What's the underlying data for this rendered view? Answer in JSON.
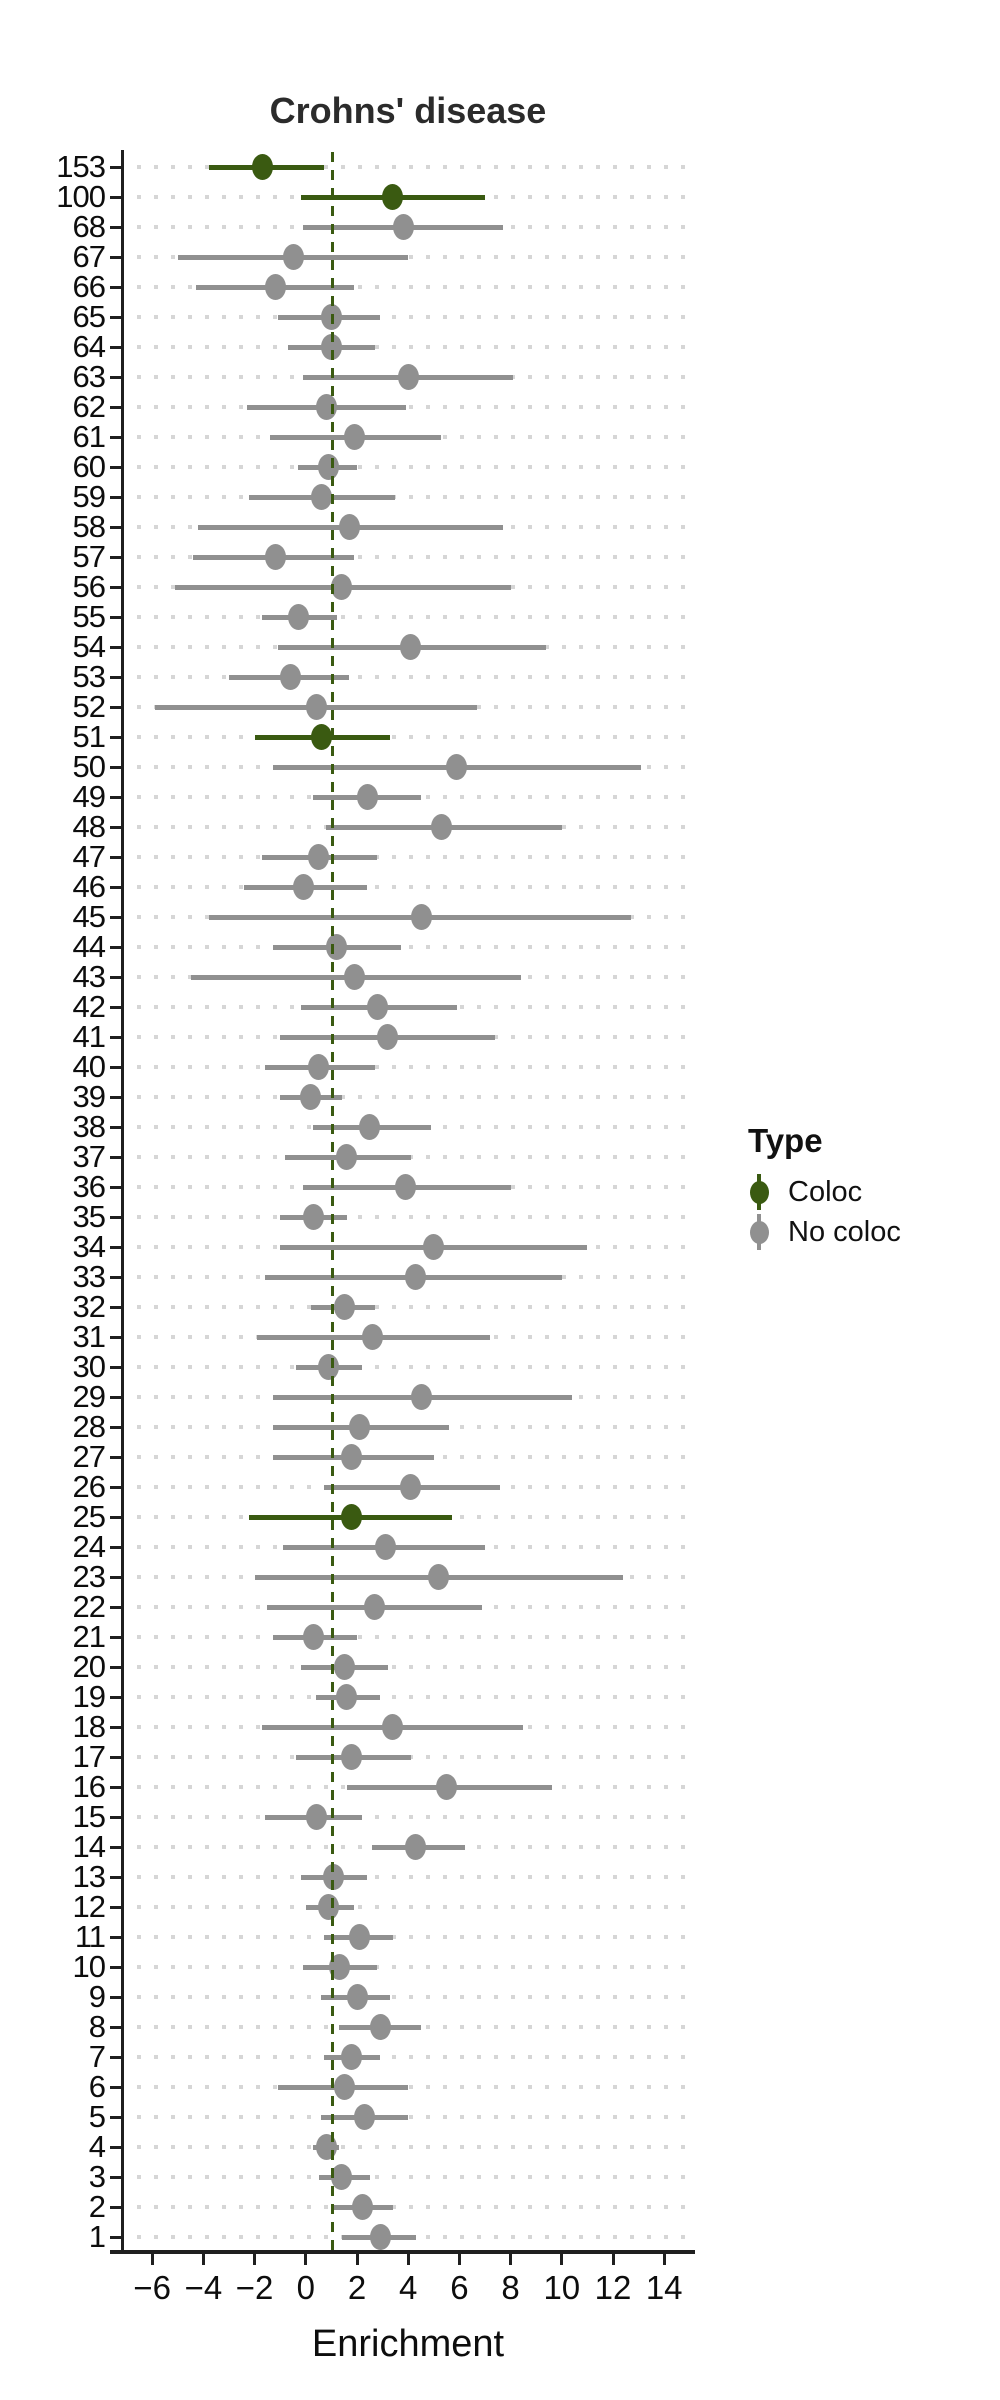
{
  "page": {
    "background": "#ffffff"
  },
  "chart_data": {
    "type": "scatter",
    "mark": "pointrange-forest-plot",
    "title": "Crohns' disease",
    "xlabel": "Enrichment",
    "ylabel": "",
    "x_ticks": [
      -6,
      -4,
      -2,
      0,
      2,
      4,
      6,
      8,
      10,
      12,
      14
    ],
    "x_tick_labels": [
      "−6",
      "−4",
      "−2",
      "0",
      "2",
      "4",
      "6",
      "8",
      "10",
      "12",
      "14"
    ],
    "xlim": [
      -7.1,
      15.1
    ],
    "grid": "dotted-horizontal-per-row",
    "vline": {
      "x": 1.05,
      "style": "dashed",
      "color": "#3a5a11"
    },
    "legend": {
      "title": "Type",
      "position": "right",
      "items": [
        {
          "label": "Coloc",
          "color": "#3a5a11"
        },
        {
          "label": "No coloc",
          "color": "#909090"
        }
      ]
    },
    "colors": {
      "coloc": "#3a5a11",
      "no_coloc": "#909090",
      "grid_dot": "#d6d6d6",
      "axis": "#1f1f1f",
      "text": "#0d0d0d",
      "title_text": "#2b2b2b"
    },
    "rows": [
      {
        "label": "153",
        "type": "Coloc",
        "mean": -1.7,
        "lo": -3.8,
        "hi": 0.7
      },
      {
        "label": "100",
        "type": "Coloc",
        "mean": 3.4,
        "lo": -0.2,
        "hi": 7.0
      },
      {
        "label": "68",
        "type": "No coloc",
        "mean": 3.8,
        "lo": -0.1,
        "hi": 7.7
      },
      {
        "label": "67",
        "type": "No coloc",
        "mean": -0.5,
        "lo": -5.0,
        "hi": 4.0
      },
      {
        "label": "66",
        "type": "No coloc",
        "mean": -1.2,
        "lo": -4.3,
        "hi": 1.9
      },
      {
        "label": "65",
        "type": "No coloc",
        "mean": 1.0,
        "lo": -1.1,
        "hi": 2.9
      },
      {
        "label": "64",
        "type": "No coloc",
        "mean": 1.0,
        "lo": -0.7,
        "hi": 2.7
      },
      {
        "label": "63",
        "type": "No coloc",
        "mean": 4.0,
        "lo": -0.1,
        "hi": 8.1
      },
      {
        "label": "62",
        "type": "No coloc",
        "mean": 0.8,
        "lo": -2.3,
        "hi": 3.9
      },
      {
        "label": "61",
        "type": "No coloc",
        "mean": 1.9,
        "lo": -1.4,
        "hi": 5.3
      },
      {
        "label": "60",
        "type": "No coloc",
        "mean": 0.9,
        "lo": -0.3,
        "hi": 2.0
      },
      {
        "label": "59",
        "type": "No coloc",
        "mean": 0.6,
        "lo": -2.2,
        "hi": 3.5
      },
      {
        "label": "58",
        "type": "No coloc",
        "mean": 1.7,
        "lo": -4.2,
        "hi": 7.7
      },
      {
        "label": "57",
        "type": "No coloc",
        "mean": -1.2,
        "lo": -4.4,
        "hi": 1.9
      },
      {
        "label": "56",
        "type": "No coloc",
        "mean": 1.4,
        "lo": -5.1,
        "hi": 8.0
      },
      {
        "label": "55",
        "type": "No coloc",
        "mean": -0.3,
        "lo": -1.7,
        "hi": 1.2
      },
      {
        "label": "54",
        "type": "No coloc",
        "mean": 4.1,
        "lo": -1.1,
        "hi": 9.4
      },
      {
        "label": "53",
        "type": "No coloc",
        "mean": -0.6,
        "lo": -3.0,
        "hi": 1.7
      },
      {
        "label": "52",
        "type": "No coloc",
        "mean": 0.4,
        "lo": -5.9,
        "hi": 6.7
      },
      {
        "label": "51",
        "type": "Coloc",
        "mean": 0.6,
        "lo": -2.0,
        "hi": 3.3
      },
      {
        "label": "50",
        "type": "No coloc",
        "mean": 5.9,
        "lo": -1.3,
        "hi": 13.1
      },
      {
        "label": "49",
        "type": "No coloc",
        "mean": 2.4,
        "lo": 0.3,
        "hi": 4.5
      },
      {
        "label": "48",
        "type": "No coloc",
        "mean": 5.3,
        "lo": 0.8,
        "hi": 10.0
      },
      {
        "label": "47",
        "type": "No coloc",
        "mean": 0.5,
        "lo": -1.7,
        "hi": 2.8
      },
      {
        "label": "46",
        "type": "No coloc",
        "mean": -0.1,
        "lo": -2.4,
        "hi": 2.4
      },
      {
        "label": "45",
        "type": "No coloc",
        "mean": 4.5,
        "lo": -3.8,
        "hi": 12.7
      },
      {
        "label": "44",
        "type": "No coloc",
        "mean": 1.2,
        "lo": -1.3,
        "hi": 3.7
      },
      {
        "label": "43",
        "type": "No coloc",
        "mean": 1.9,
        "lo": -4.5,
        "hi": 8.4
      },
      {
        "label": "42",
        "type": "No coloc",
        "mean": 2.8,
        "lo": -0.2,
        "hi": 5.9
      },
      {
        "label": "41",
        "type": "No coloc",
        "mean": 3.2,
        "lo": -1.0,
        "hi": 7.4
      },
      {
        "label": "40",
        "type": "No coloc",
        "mean": 0.5,
        "lo": -1.6,
        "hi": 2.7
      },
      {
        "label": "39",
        "type": "No coloc",
        "mean": 0.2,
        "lo": -1.0,
        "hi": 1.4
      },
      {
        "label": "38",
        "type": "No coloc",
        "mean": 2.5,
        "lo": 0.3,
        "hi": 4.9
      },
      {
        "label": "37",
        "type": "No coloc",
        "mean": 1.6,
        "lo": -0.8,
        "hi": 4.1
      },
      {
        "label": "36",
        "type": "No coloc",
        "mean": 3.9,
        "lo": -0.1,
        "hi": 8.0
      },
      {
        "label": "35",
        "type": "No coloc",
        "mean": 0.3,
        "lo": -1.0,
        "hi": 1.6
      },
      {
        "label": "34",
        "type": "No coloc",
        "mean": 5.0,
        "lo": -1.0,
        "hi": 11.0
      },
      {
        "label": "33",
        "type": "No coloc",
        "mean": 4.3,
        "lo": -1.6,
        "hi": 10.0
      },
      {
        "label": "32",
        "type": "No coloc",
        "mean": 1.5,
        "lo": 0.2,
        "hi": 2.7
      },
      {
        "label": "31",
        "type": "No coloc",
        "mean": 2.6,
        "lo": -1.9,
        "hi": 7.2
      },
      {
        "label": "30",
        "type": "No coloc",
        "mean": 0.9,
        "lo": -0.4,
        "hi": 2.2
      },
      {
        "label": "29",
        "type": "No coloc",
        "mean": 4.5,
        "lo": -1.3,
        "hi": 10.4
      },
      {
        "label": "28",
        "type": "No coloc",
        "mean": 2.1,
        "lo": -1.3,
        "hi": 5.6
      },
      {
        "label": "27",
        "type": "No coloc",
        "mean": 1.8,
        "lo": -1.3,
        "hi": 5.0
      },
      {
        "label": "26",
        "type": "No coloc",
        "mean": 4.1,
        "lo": 0.7,
        "hi": 7.6
      },
      {
        "label": "25",
        "type": "Coloc",
        "mean": 1.8,
        "lo": -2.2,
        "hi": 5.7
      },
      {
        "label": "24",
        "type": "No coloc",
        "mean": 3.1,
        "lo": -0.9,
        "hi": 7.0
      },
      {
        "label": "23",
        "type": "No coloc",
        "mean": 5.2,
        "lo": -2.0,
        "hi": 12.4
      },
      {
        "label": "22",
        "type": "No coloc",
        "mean": 2.7,
        "lo": -1.5,
        "hi": 6.9
      },
      {
        "label": "21",
        "type": "No coloc",
        "mean": 0.3,
        "lo": -1.3,
        "hi": 2.0
      },
      {
        "label": "20",
        "type": "No coloc",
        "mean": 1.5,
        "lo": -0.2,
        "hi": 3.2
      },
      {
        "label": "19",
        "type": "No coloc",
        "mean": 1.6,
        "lo": 0.4,
        "hi": 2.9
      },
      {
        "label": "18",
        "type": "No coloc",
        "mean": 3.4,
        "lo": -1.7,
        "hi": 8.5
      },
      {
        "label": "17",
        "type": "No coloc",
        "mean": 1.8,
        "lo": -0.4,
        "hi": 4.1
      },
      {
        "label": "16",
        "type": "No coloc",
        "mean": 5.5,
        "lo": 1.6,
        "hi": 9.6
      },
      {
        "label": "15",
        "type": "No coloc",
        "mean": 0.4,
        "lo": -1.6,
        "hi": 2.2
      },
      {
        "label": "14",
        "type": "No coloc",
        "mean": 4.3,
        "lo": 2.6,
        "hi": 6.2
      },
      {
        "label": "13",
        "type": "No coloc",
        "mean": 1.1,
        "lo": -0.2,
        "hi": 2.4
      },
      {
        "label": "12",
        "type": "No coloc",
        "mean": 0.9,
        "lo": 0.0,
        "hi": 1.9
      },
      {
        "label": "11",
        "type": "No coloc",
        "mean": 2.1,
        "lo": 0.7,
        "hi": 3.4
      },
      {
        "label": "10",
        "type": "No coloc",
        "mean": 1.3,
        "lo": -0.1,
        "hi": 2.8
      },
      {
        "label": "9",
        "type": "No coloc",
        "mean": 2.0,
        "lo": 0.6,
        "hi": 3.3
      },
      {
        "label": "8",
        "type": "No coloc",
        "mean": 2.9,
        "lo": 1.3,
        "hi": 4.5
      },
      {
        "label": "7",
        "type": "No coloc",
        "mean": 1.8,
        "lo": 0.7,
        "hi": 2.9
      },
      {
        "label": "6",
        "type": "No coloc",
        "mean": 1.5,
        "lo": -1.1,
        "hi": 4.0
      },
      {
        "label": "5",
        "type": "No coloc",
        "mean": 2.3,
        "lo": 0.6,
        "hi": 4.0
      },
      {
        "label": "4",
        "type": "No coloc",
        "mean": 0.8,
        "lo": 0.3,
        "hi": 1.3
      },
      {
        "label": "3",
        "type": "No coloc",
        "mean": 1.4,
        "lo": 0.5,
        "hi": 2.5
      },
      {
        "label": "2",
        "type": "No coloc",
        "mean": 2.2,
        "lo": 1.0,
        "hi": 3.4
      },
      {
        "label": "1",
        "type": "No coloc",
        "mean": 2.9,
        "lo": 1.4,
        "hi": 4.3
      }
    ]
  }
}
